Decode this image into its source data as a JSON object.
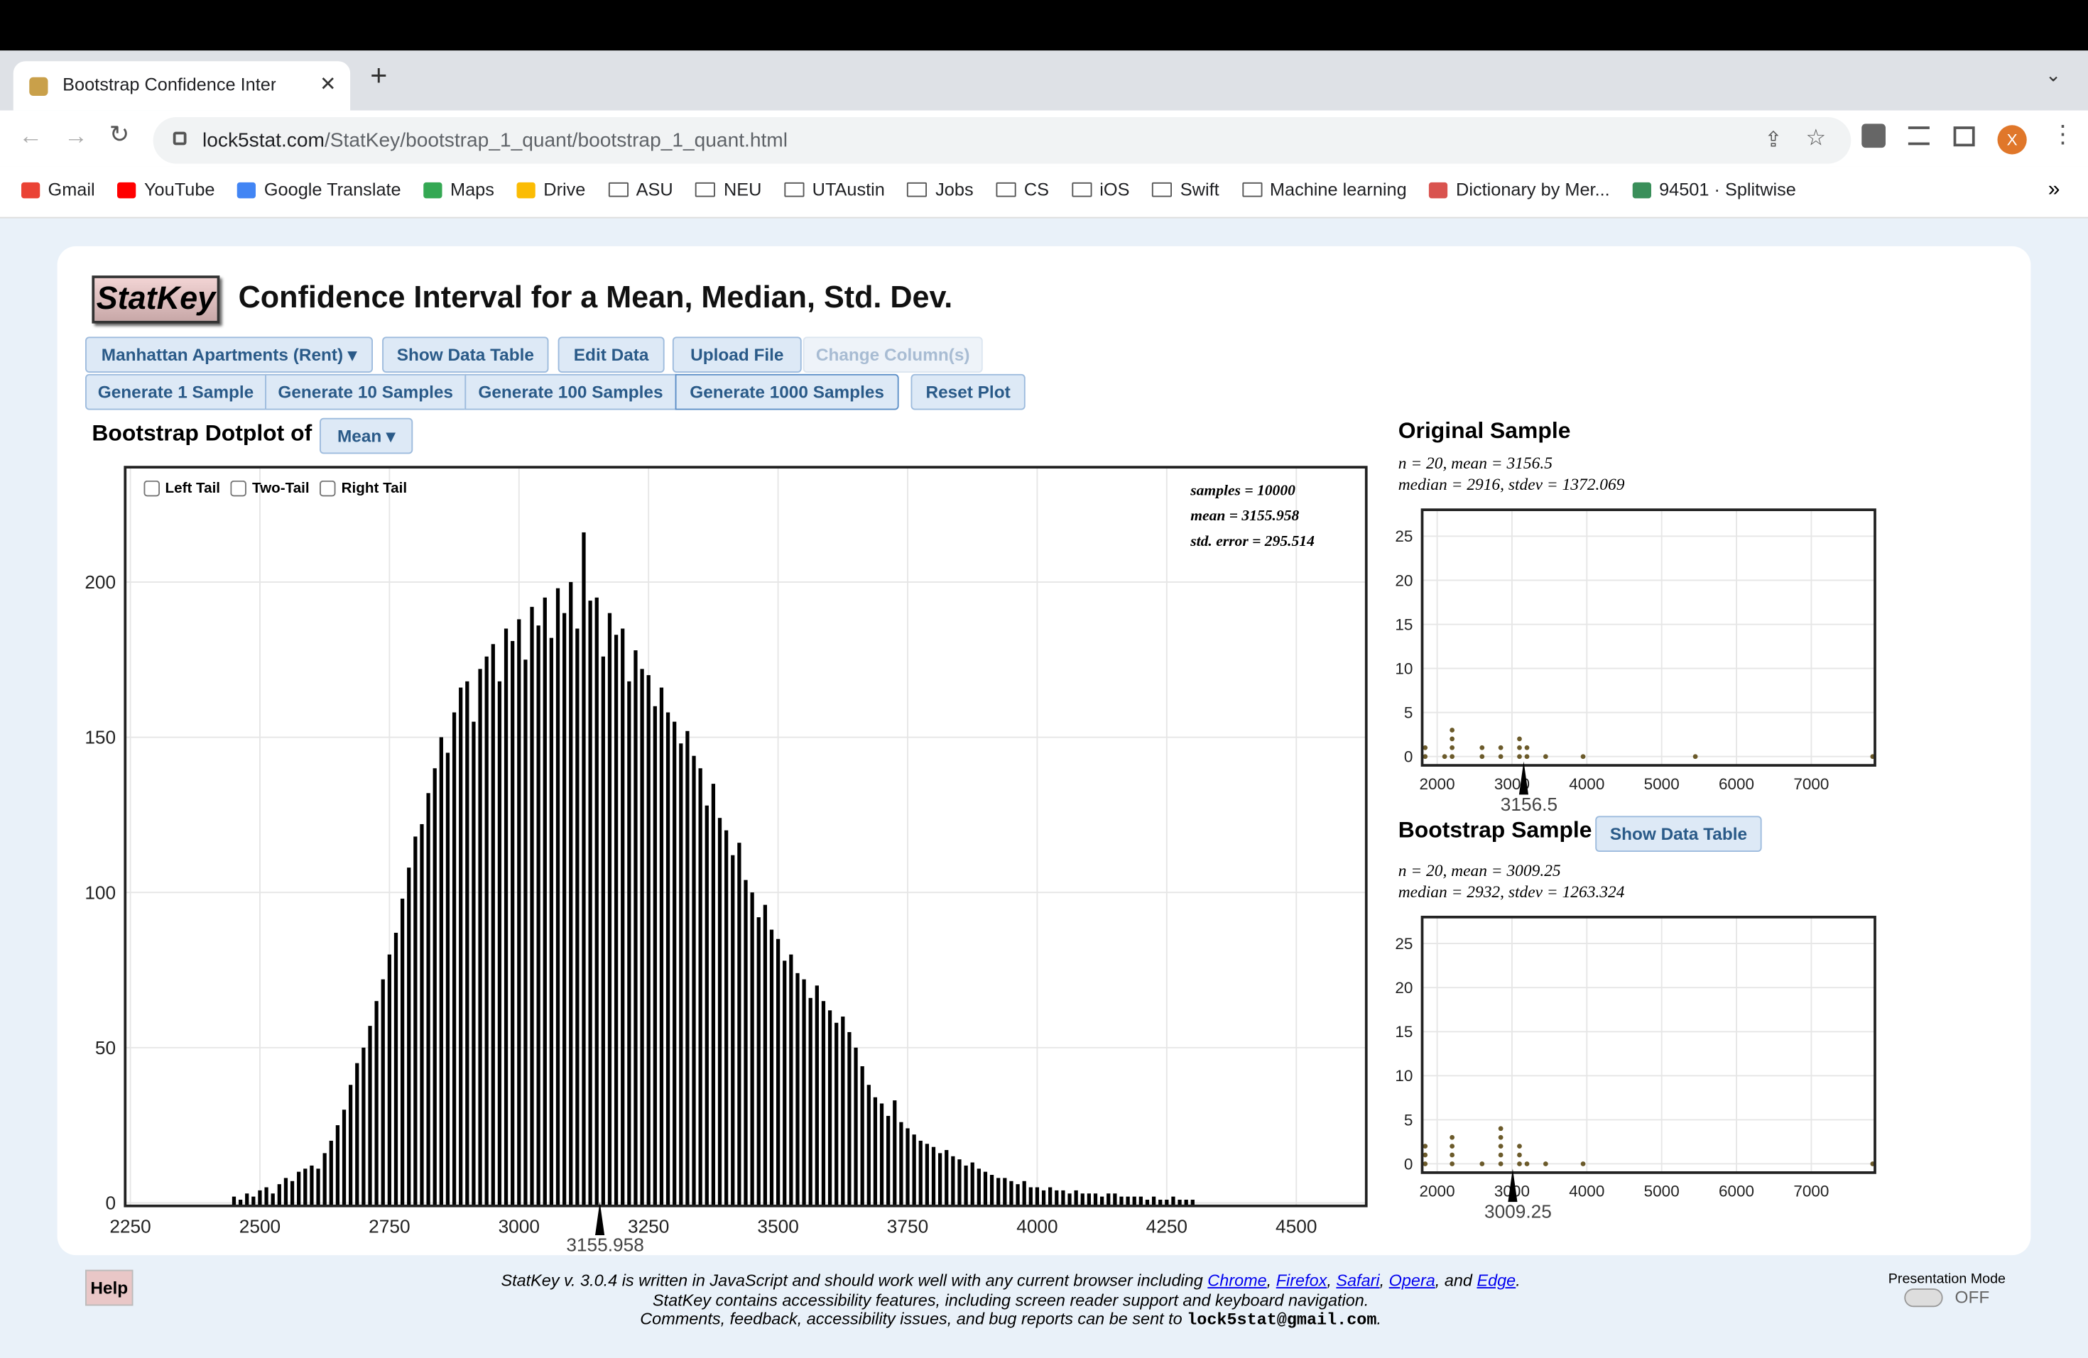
{
  "browser": {
    "tab_title": "Bootstrap Confidence Interval",
    "url_host": "lock5stat.com",
    "url_path": "/StatKey/bootstrap_1_quant/bootstrap_1_quant.html",
    "profile": "X",
    "overflow": "»",
    "bookmarks": [
      "Gmail",
      "YouTube",
      "Google Translate",
      "Maps",
      "Drive",
      "ASU",
      "NEU",
      "UTAustin",
      "Jobs",
      "CS",
      "iOS",
      "Swift",
      "Machine learning",
      "Dictionary by Mer...",
      "94501 · Splitwise"
    ]
  },
  "page": {
    "logo": "StatKey",
    "title": "Confidence Interval for a Mean, Median, Std. Dev.",
    "toolbar1": [
      "Manhattan Apartments (Rent)",
      "Show Data Table",
      "Edit Data",
      "Upload File",
      "Change Column(s)"
    ],
    "toolbar2": [
      "Generate 1 Sample",
      "Generate 10 Samples",
      "Generate 100 Samples",
      "Generate 1000 Samples",
      "Reset Plot"
    ],
    "dotplot_label": "Bootstrap Dotplot of",
    "statistic": "Mean",
    "tails": [
      "Left Tail",
      "Two-Tail",
      "Right Tail"
    ],
    "stats": [
      "samples = 10000",
      "mean = 3155.958",
      "std. error = 295.514"
    ],
    "original": {
      "heading": "Original Sample",
      "stats": [
        "n = 20, mean = 3156.5",
        "median = 2916, stdev = 1372.069"
      ]
    },
    "bootstrap": {
      "heading": "Bootstrap Sample",
      "button": "Show Data Table",
      "stats": [
        "n = 20, mean = 3009.25",
        "median = 2932, stdev = 1263.324"
      ]
    },
    "help": "Help",
    "footer": {
      "line1": [
        "StatKey v. 3.0.4 is written in JavaScript and should work well with any current browser including ",
        "Chrome",
        ", ",
        "Firefox",
        ", ",
        "Safari",
        ", ",
        "Opera",
        ", and ",
        "Edge",
        "."
      ],
      "line2": "StatKey contains accessibility features, including screen reader support and keyboard navigation.",
      "line3": [
        "Comments, feedback, accessibility issues, and bug reports can be sent to ",
        "lock5stat@gmail.com",
        "."
      ]
    },
    "presentation": {
      "label": "Presentation Mode",
      "state": "OFF"
    }
  },
  "chart_data": [
    {
      "type": "dotplot",
      "color": "#000000",
      "grid": true,
      "marker": 3155.958,
      "xlim": [
        2240,
        4635
      ],
      "ylim": [
        -1,
        237
      ],
      "xticks": [
        2250,
        2500,
        2750,
        3000,
        3250,
        3500,
        3750,
        4000,
        4250,
        4500
      ],
      "yticks": [
        0,
        50,
        100,
        150,
        200
      ],
      "x": [
        2450,
        2462.5,
        2475,
        2487.5,
        2500,
        2512.5,
        2525,
        2537.5,
        2550,
        2562.5,
        2575,
        2587.5,
        2600,
        2612.5,
        2625,
        2637.5,
        2650,
        2662.5,
        2675,
        2687.5,
        2700,
        2712.5,
        2725,
        2737.5,
        2750,
        2762.5,
        2775,
        2787.5,
        2800,
        2812.5,
        2825,
        2837.5,
        2850,
        2862.5,
        2875,
        2887.5,
        2900,
        2912.5,
        2925,
        2937.5,
        2950,
        2962.5,
        2975,
        2987.5,
        3000,
        3012.5,
        3025,
        3037.5,
        3050,
        3062.5,
        3075,
        3087.5,
        3100,
        3112.5,
        3125,
        3137.5,
        3150,
        3162.5,
        3175,
        3187.5,
        3200,
        3212.5,
        3225,
        3237.5,
        3250,
        3262.5,
        3275,
        3287.5,
        3300,
        3312.5,
        3325,
        3337.5,
        3350,
        3362.5,
        3375,
        3387.5,
        3400,
        3412.5,
        3425,
        3437.5,
        3450,
        3462.5,
        3475,
        3487.5,
        3500,
        3512.5,
        3525,
        3537.5,
        3550,
        3562.5,
        3575,
        3587.5,
        3600,
        3612.5,
        3625,
        3637.5,
        3650,
        3662.5,
        3675,
        3687.5,
        3700,
        3712.5,
        3725,
        3737.5,
        3750,
        3762.5,
        3775,
        3787.5,
        3800,
        3812.5,
        3825,
        3837.5,
        3850,
        3862.5,
        3875,
        3887.5,
        3900,
        3912.5,
        3925,
        3937.5,
        3950,
        3962.5,
        3975,
        3987.5,
        4000,
        4012.5,
        4025,
        4037.5,
        4050,
        4062.5,
        4075,
        4087.5,
        4100,
        4112.5,
        4125,
        4137.5,
        4150,
        4162.5,
        4175,
        4187.5,
        4200,
        4212.5,
        4225,
        4237.5,
        4250,
        4262.5,
        4275,
        4287.5,
        4300
      ],
      "values": [
        2,
        1,
        3,
        2,
        4,
        5,
        3,
        6,
        8,
        7,
        10,
        11,
        12,
        11,
        16,
        20,
        25,
        30,
        38,
        45,
        50,
        57,
        65,
        72,
        80,
        87,
        98,
        108,
        118,
        122,
        132,
        140,
        150,
        145,
        158,
        166,
        168,
        155,
        172,
        176,
        180,
        168,
        185,
        181,
        188,
        175,
        192,
        186,
        195,
        182,
        198,
        190,
        200,
        185,
        216,
        194,
        195,
        176,
        190,
        183,
        185,
        168,
        178,
        172,
        170,
        160,
        166,
        158,
        155,
        148,
        152,
        144,
        140,
        128,
        135,
        124,
        120,
        112,
        116,
        104,
        100,
        92,
        96,
        88,
        85,
        78,
        80,
        74,
        72,
        66,
        70,
        65,
        62,
        58,
        60,
        55,
        50,
        44,
        38,
        34,
        32,
        28,
        33,
        26,
        24,
        22,
        20,
        19,
        18,
        16,
        17,
        15,
        14,
        12,
        13,
        11,
        10,
        9,
        8,
        8,
        7,
        6,
        7,
        5,
        5,
        4,
        5,
        4,
        4,
        3,
        4,
        3,
        3,
        3,
        2,
        3,
        3,
        2,
        2,
        2,
        2,
        1,
        2,
        1,
        1,
        2,
        1,
        1,
        1
      ]
    },
    {
      "type": "dotplot",
      "color": "#6b5a2a",
      "grid": true,
      "marker": 3156.5,
      "xlim": [
        1800,
        7850
      ],
      "ylim": [
        -1,
        28
      ],
      "xticks": [
        2000,
        3000,
        4000,
        5000,
        6000,
        7000
      ],
      "yticks": [
        0,
        5,
        10,
        15,
        20,
        25
      ],
      "x": [
        1840,
        2100,
        2200,
        2600,
        2850,
        3100,
        3200,
        3450,
        3950,
        5450,
        7820
      ],
      "values": [
        2,
        1,
        4,
        2,
        2,
        3,
        2,
        1,
        1,
        1,
        1
      ]
    },
    {
      "type": "dotplot",
      "color": "#6b5a2a",
      "grid": true,
      "marker": 3009.25,
      "xlim": [
        1800,
        7850
      ],
      "ylim": [
        -1,
        28
      ],
      "xticks": [
        2000,
        3000,
        4000,
        5000,
        6000,
        7000
      ],
      "yticks": [
        0,
        5,
        10,
        15,
        20,
        25
      ],
      "x": [
        1840,
        2200,
        2600,
        2850,
        3100,
        3200,
        3450,
        3950,
        7820
      ],
      "values": [
        3,
        4,
        1,
        5,
        3,
        1,
        1,
        1,
        1
      ]
    }
  ]
}
